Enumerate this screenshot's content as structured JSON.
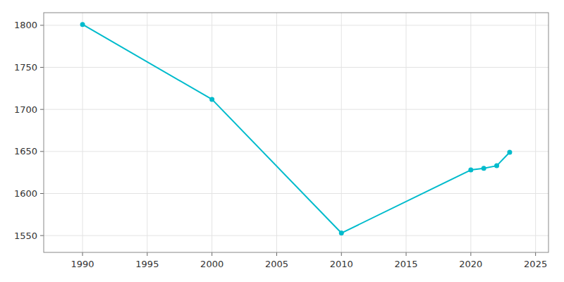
{
  "chart_data": {
    "type": "line",
    "x": [
      1990,
      2000,
      2010,
      2020,
      2021,
      2022,
      2023
    ],
    "values": [
      1801,
      1712,
      1553,
      1628,
      1630,
      1633,
      1649
    ],
    "color": "#00BBCC",
    "marker": "circle",
    "xlim": [
      1987,
      2026
    ],
    "ylim": [
      1530,
      1815
    ],
    "xticks": [
      1990,
      1995,
      2000,
      2005,
      2010,
      2015,
      2020,
      2025
    ],
    "yticks": [
      1550,
      1600,
      1650,
      1700,
      1750,
      1800
    ],
    "grid": true
  }
}
